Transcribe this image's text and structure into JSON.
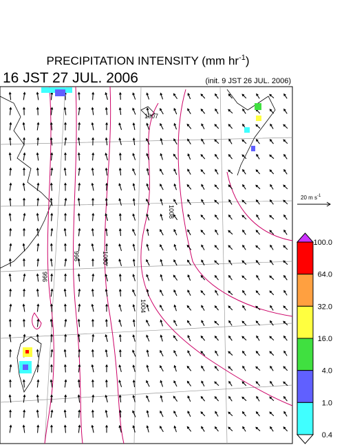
{
  "header": {
    "title": {
      "text": "PRECIPITATION INTENSITY (mm hr",
      "superscript": "-1",
      "close": ")"
    },
    "valid_time": "16 JST 27 JUL. 2006",
    "init_time": "(init. 9 JST 26 JUL. 2006)"
  },
  "map": {
    "contour_labels": [
      "1007",
      "1008",
      "996",
      "1000",
      "996",
      "1004"
    ],
    "scale_label": {
      "text": "20 m s",
      "superscript": "-1"
    }
  },
  "colorbar": {
    "levels": [
      {
        "value": 100,
        "label": "100.0"
      },
      {
        "value": 64,
        "label": "64.0"
      },
      {
        "value": 32,
        "label": "32.0"
      },
      {
        "value": 16,
        "label": "16.0"
      },
      {
        "value": 4,
        "label": "4.0"
      },
      {
        "value": 1,
        "label": "1.0"
      },
      {
        "value": 0.4,
        "label": "0.4"
      }
    ],
    "colors": [
      "#ff0000",
      "#ffa040",
      "#ffff40",
      "#40e040",
      "#6060ff",
      "#40ffff"
    ],
    "over_color": "#cc33ff",
    "under_color": "#ffffff"
  }
}
